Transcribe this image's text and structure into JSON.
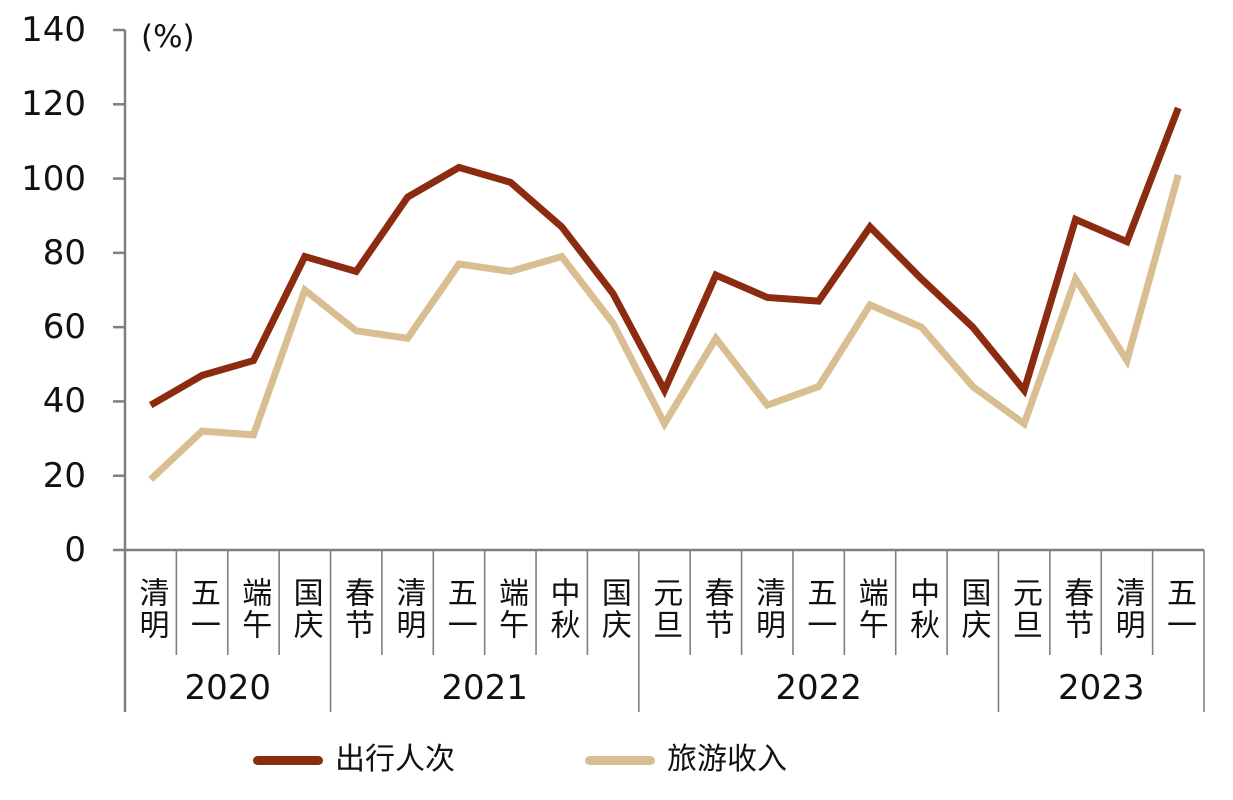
{
  "chart_data": {
    "type": "line",
    "title": "",
    "unit_label": "(%)",
    "grid": false,
    "legend_position": "bottom",
    "axis_color": "#7F7F7F",
    "y_axis": {
      "min": 0,
      "max": 140,
      "step": 20,
      "tick_labels": [
        "0",
        "20",
        "40",
        "60",
        "80",
        "100",
        "120",
        "140"
      ]
    },
    "categories": [
      "清明",
      "五一",
      "端午",
      "国庆",
      "春节",
      "清明",
      "五一",
      "端午",
      "中秋",
      "国庆",
      "元旦",
      "春节",
      "清明",
      "五一",
      "端午",
      "中秋",
      "国庆",
      "元旦",
      "春节",
      "清明",
      "五一"
    ],
    "year_groups": [
      {
        "label": "2020",
        "count": 4
      },
      {
        "label": "2021",
        "count": 6
      },
      {
        "label": "2022",
        "count": 7
      },
      {
        "label": "2023",
        "count": 4
      }
    ],
    "series": [
      {
        "name": "出行人次",
        "color": "#8B2B10",
        "values": [
          39,
          47,
          51,
          79,
          75,
          95,
          103,
          99,
          87,
          69,
          43,
          74,
          68,
          67,
          87,
          73,
          60,
          43,
          89,
          83,
          119
        ]
      },
      {
        "name": "旅游收入",
        "color": "#D9BE92",
        "values": [
          19,
          32,
          31,
          70,
          59,
          57,
          77,
          75,
          79,
          61,
          34,
          57,
          39,
          44,
          66,
          60,
          44,
          34,
          73,
          51,
          101
        ]
      }
    ]
  }
}
